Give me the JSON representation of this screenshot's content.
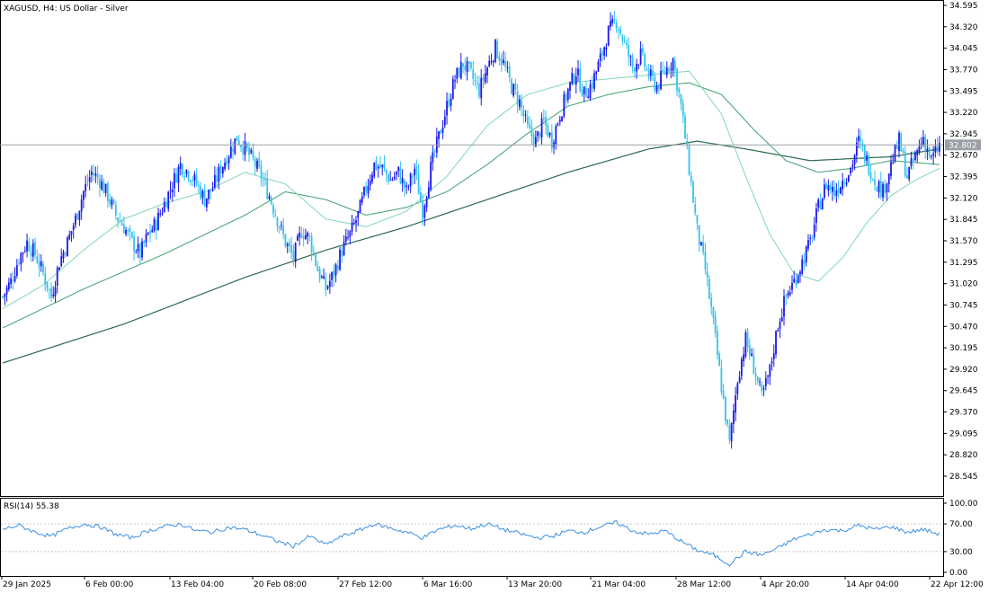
{
  "window": {
    "title": "XAGUSD, H4:  US Dollar - Silver"
  },
  "price_label": "32.802",
  "rsi_label": "RSI(14) 55.38",
  "colors": {
    "bull_candle": "#1a1ae6",
    "bear_candle": "#33c3ee",
    "ma_fast": "#7fd8b6",
    "ma_mid": "#4ea87a",
    "ma_slow": "#2a6b4a",
    "rsi_line": "#3a8fe0",
    "price_line": "#9aa0a6",
    "price_tag_bg": "#9aa0a6",
    "grid_dotted": "#c8c8c8"
  },
  "chart_data": [
    {
      "type": "candlestick",
      "symbol": "XAGUSD",
      "timeframe": "H4",
      "description": "US Dollar - Silver",
      "y_ticks": [
        "34.595",
        "34.320",
        "34.045",
        "33.770",
        "33.495",
        "33.220",
        "32.945",
        "32.670",
        "32.395",
        "32.120",
        "31.845",
        "31.570",
        "31.295",
        "31.020",
        "30.745",
        "30.470",
        "30.195",
        "29.920",
        "29.645",
        "29.370",
        "29.095",
        "28.820",
        "28.545"
      ],
      "ylim": [
        28.31,
        34.595
      ],
      "x_ticks": [
        "29 Jan 2025",
        "6 Feb 00:00",
        "13 Feb 04:00",
        "20 Feb 08:00",
        "27 Feb 12:00",
        "6 Mar 16:00",
        "13 Mar 20:00",
        "21 Mar 04:00",
        "28 Mar 12:00",
        "4 Apr 20:00",
        "14 Apr 04:00",
        "22 Apr 12:00"
      ],
      "current_price": 32.802,
      "close_path": [
        [
          0,
          30.85
        ],
        [
          4,
          31.05
        ],
        [
          8,
          31.35
        ],
        [
          12,
          31.55
        ],
        [
          16,
          31.4
        ],
        [
          20,
          31.15
        ],
        [
          24,
          30.85
        ],
        [
          28,
          31.3
        ],
        [
          32,
          31.55
        ],
        [
          36,
          31.85
        ],
        [
          40,
          32.2
        ],
        [
          44,
          32.45
        ],
        [
          48,
          32.35
        ],
        [
          52,
          32.15
        ],
        [
          56,
          31.9
        ],
        [
          60,
          31.75
        ],
        [
          64,
          31.55
        ],
        [
          68,
          31.4
        ],
        [
          72,
          31.65
        ],
        [
          76,
          31.8
        ],
        [
          80,
          32.05
        ],
        [
          84,
          32.3
        ],
        [
          88,
          32.55
        ],
        [
          92,
          32.45
        ],
        [
          96,
          32.3
        ],
        [
          100,
          32.1
        ],
        [
          104,
          32.25
        ],
        [
          108,
          32.5
        ],
        [
          112,
          32.7
        ],
        [
          116,
          32.9
        ],
        [
          120,
          32.75
        ],
        [
          124,
          32.6
        ],
        [
          128,
          32.4
        ],
        [
          132,
          32.15
        ],
        [
          136,
          31.85
        ],
        [
          140,
          31.55
        ],
        [
          144,
          31.35
        ],
        [
          148,
          31.7
        ],
        [
          152,
          31.6
        ],
        [
          156,
          31.2
        ],
        [
          160,
          30.95
        ],
        [
          164,
          31.15
        ],
        [
          168,
          31.45
        ],
        [
          172,
          31.65
        ],
        [
          176,
          31.9
        ],
        [
          180,
          32.25
        ],
        [
          184,
          32.55
        ],
        [
          188,
          32.5
        ],
        [
          192,
          32.35
        ],
        [
          196,
          32.45
        ],
        [
          200,
          32.2
        ],
        [
          204,
          32.5
        ],
        [
          208,
          31.95
        ],
        [
          212,
          32.5
        ],
        [
          216,
          32.9
        ],
        [
          220,
          33.3
        ],
        [
          224,
          33.65
        ],
        [
          228,
          33.85
        ],
        [
          232,
          33.7
        ],
        [
          236,
          33.5
        ],
        [
          240,
          33.8
        ],
        [
          244,
          34.05
        ],
        [
          248,
          33.85
        ],
        [
          252,
          33.55
        ],
        [
          256,
          33.35
        ],
        [
          260,
          33.0
        ],
        [
          264,
          32.85
        ],
        [
          268,
          33.1
        ],
        [
          272,
          32.85
        ],
        [
          276,
          33.2
        ],
        [
          280,
          33.5
        ],
        [
          284,
          33.75
        ],
        [
          288,
          33.45
        ],
        [
          292,
          33.6
        ],
        [
          296,
          33.9
        ],
        [
          300,
          34.25
        ],
        [
          304,
          34.4
        ],
        [
          308,
          34.1
        ],
        [
          312,
          33.8
        ],
        [
          316,
          33.95
        ],
        [
          320,
          33.7
        ],
        [
          324,
          33.55
        ],
        [
          328,
          33.75
        ],
        [
          332,
          33.9
        ],
        [
          336,
          33.3
        ],
        [
          340,
          32.5
        ],
        [
          344,
          31.7
        ],
        [
          348,
          31.2
        ],
        [
          352,
          30.5
        ],
        [
          356,
          29.7
        ],
        [
          360,
          28.95
        ],
        [
          364,
          29.8
        ],
        [
          368,
          30.3
        ],
        [
          372,
          29.95
        ],
        [
          376,
          29.55
        ],
        [
          380,
          29.9
        ],
        [
          384,
          30.5
        ],
        [
          388,
          30.85
        ],
        [
          392,
          31.05
        ],
        [
          396,
          31.3
        ],
        [
          400,
          31.55
        ],
        [
          404,
          32.0
        ],
        [
          408,
          32.3
        ],
        [
          412,
          32.2
        ],
        [
          416,
          32.35
        ],
        [
          420,
          32.5
        ],
        [
          424,
          32.85
        ],
        [
          428,
          32.6
        ],
        [
          432,
          32.35
        ],
        [
          436,
          32.2
        ],
        [
          440,
          32.55
        ],
        [
          444,
          32.85
        ],
        [
          448,
          32.4
        ],
        [
          452,
          32.65
        ],
        [
          456,
          32.9
        ],
        [
          460,
          32.6
        ],
        [
          464,
          32.8
        ]
      ],
      "ma_fast_path": [
        [
          0,
          30.7
        ],
        [
          20,
          31.0
        ],
        [
          40,
          31.45
        ],
        [
          60,
          31.85
        ],
        [
          80,
          32.05
        ],
        [
          100,
          32.2
        ],
        [
          120,
          32.45
        ],
        [
          140,
          32.3
        ],
        [
          160,
          31.85
        ],
        [
          180,
          31.75
        ],
        [
          200,
          31.95
        ],
        [
          220,
          32.4
        ],
        [
          240,
          33.05
        ],
        [
          260,
          33.45
        ],
        [
          280,
          33.6
        ],
        [
          300,
          33.65
        ],
        [
          320,
          33.7
        ],
        [
          340,
          33.75
        ],
        [
          356,
          33.2
        ],
        [
          368,
          32.4
        ],
        [
          380,
          31.65
        ],
        [
          392,
          31.15
        ],
        [
          404,
          31.05
        ],
        [
          416,
          31.35
        ],
        [
          428,
          31.8
        ],
        [
          440,
          32.15
        ],
        [
          452,
          32.35
        ],
        [
          464,
          32.5
        ]
      ],
      "ma_mid_path": [
        [
          0,
          30.45
        ],
        [
          40,
          30.95
        ],
        [
          80,
          31.4
        ],
        [
          120,
          31.9
        ],
        [
          140,
          32.2
        ],
        [
          160,
          32.1
        ],
        [
          180,
          31.9
        ],
        [
          200,
          32.0
        ],
        [
          220,
          32.2
        ],
        [
          240,
          32.55
        ],
        [
          260,
          32.95
        ],
        [
          280,
          33.3
        ],
        [
          300,
          33.45
        ],
        [
          320,
          33.55
        ],
        [
          340,
          33.6
        ],
        [
          356,
          33.45
        ],
        [
          372,
          33.0
        ],
        [
          388,
          32.6
        ],
        [
          404,
          32.45
        ],
        [
          420,
          32.5
        ],
        [
          440,
          32.6
        ],
        [
          464,
          32.55
        ]
      ],
      "ma_slow_path": [
        [
          0,
          30.0
        ],
        [
          60,
          30.5
        ],
        [
          120,
          31.1
        ],
        [
          160,
          31.45
        ],
        [
          200,
          31.75
        ],
        [
          240,
          32.1
        ],
        [
          280,
          32.45
        ],
        [
          320,
          32.75
        ],
        [
          344,
          32.85
        ],
        [
          368,
          32.75
        ],
        [
          400,
          32.6
        ],
        [
          440,
          32.65
        ],
        [
          464,
          32.75
        ]
      ],
      "candle_count": 465
    },
    {
      "type": "line",
      "indicator": "RSI(14)",
      "current_value": 55.38,
      "y_ticks": [
        "100.00",
        "70.00",
        "30.00",
        "0.00"
      ],
      "ylim": [
        0,
        100
      ],
      "levels": [
        70,
        30
      ],
      "rsi_path": [
        [
          0,
          62
        ],
        [
          8,
          68
        ],
        [
          16,
          58
        ],
        [
          24,
          52
        ],
        [
          32,
          63
        ],
        [
          40,
          70
        ],
        [
          48,
          66
        ],
        [
          56,
          55
        ],
        [
          64,
          50
        ],
        [
          72,
          60
        ],
        [
          80,
          66
        ],
        [
          88,
          70
        ],
        [
          96,
          60
        ],
        [
          104,
          58
        ],
        [
          112,
          65
        ],
        [
          120,
          62
        ],
        [
          128,
          54
        ],
        [
          136,
          45
        ],
        [
          144,
          38
        ],
        [
          152,
          52
        ],
        [
          160,
          40
        ],
        [
          168,
          52
        ],
        [
          176,
          60
        ],
        [
          184,
          70
        ],
        [
          192,
          64
        ],
        [
          200,
          58
        ],
        [
          208,
          50
        ],
        [
          216,
          62
        ],
        [
          224,
          68
        ],
        [
          232,
          63
        ],
        [
          240,
          70
        ],
        [
          248,
          62
        ],
        [
          256,
          56
        ],
        [
          264,
          50
        ],
        [
          272,
          52
        ],
        [
          280,
          60
        ],
        [
          288,
          58
        ],
        [
          296,
          66
        ],
        [
          304,
          72
        ],
        [
          312,
          60
        ],
        [
          320,
          55
        ],
        [
          328,
          60
        ],
        [
          336,
          45
        ],
        [
          344,
          32
        ],
        [
          352,
          25
        ],
        [
          360,
          12
        ],
        [
          368,
          30
        ],
        [
          376,
          25
        ],
        [
          384,
          35
        ],
        [
          392,
          48
        ],
        [
          400,
          55
        ],
        [
          408,
          62
        ],
        [
          416,
          60
        ],
        [
          424,
          68
        ],
        [
          432,
          62
        ],
        [
          440,
          66
        ],
        [
          448,
          58
        ],
        [
          456,
          62
        ],
        [
          464,
          55
        ]
      ],
      "x_ticks": [
        "29 Jan 2025",
        "6 Feb 00:00",
        "13 Feb 04:00",
        "20 Feb 08:00",
        "27 Feb 12:00",
        "6 Mar 16:00",
        "13 Mar 20:00",
        "21 Mar 04:00",
        "28 Mar 12:00",
        "4 Apr 20:00",
        "14 Apr 04:00",
        "22 Apr 12:00"
      ]
    }
  ]
}
